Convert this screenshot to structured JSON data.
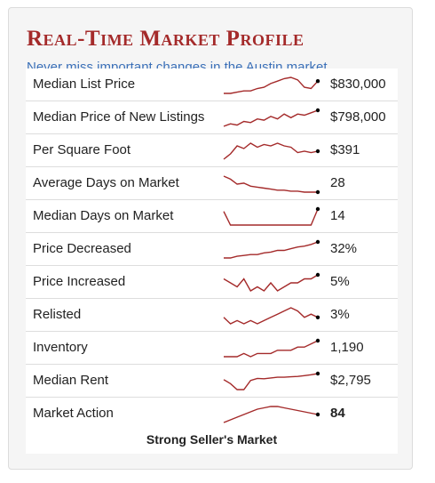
{
  "title": "Real-Time Market Profile",
  "subtitle": "Never miss important changes in the Austin market.",
  "line_color": "#a42a2a",
  "dot_color": "#000000",
  "rows": [
    {
      "label": "Median List Price",
      "value": "$830,000",
      "trend": [
        20,
        20,
        21,
        22,
        22,
        24,
        25,
        28,
        30,
        32,
        33,
        31,
        25,
        24,
        30
      ]
    },
    {
      "label": "Median Price of New Listings",
      "value": "$798,000",
      "trend": [
        20,
        22,
        21,
        24,
        23,
        26,
        25,
        28,
        26,
        30,
        27,
        30,
        29,
        31,
        33
      ]
    },
    {
      "label": "Per Square Foot",
      "value": "$391",
      "trend": [
        10,
        14,
        20,
        18,
        22,
        19,
        21,
        20,
        22,
        20,
        19,
        15,
        16,
        15,
        16
      ]
    },
    {
      "label": "Average Days on Market",
      "value": "28",
      "trend": [
        34,
        31,
        26,
        27,
        24,
        23,
        22,
        21,
        20,
        20,
        19,
        19,
        18,
        18,
        18
      ]
    },
    {
      "label": "Median Days on Market",
      "value": "14",
      "trend": [
        25,
        8,
        8,
        8,
        8,
        8,
        8,
        8,
        8,
        8,
        8,
        8,
        8,
        8,
        28
      ]
    },
    {
      "label": "Price Decreased",
      "value": "32%",
      "trend": [
        15,
        15,
        17,
        18,
        19,
        19,
        21,
        22,
        24,
        24,
        26,
        28,
        29,
        31,
        34
      ]
    },
    {
      "label": "Price Increased",
      "value": "5%",
      "trend": [
        9,
        8,
        7,
        9,
        6,
        7,
        6,
        8,
        6,
        7,
        8,
        8,
        9,
        9,
        10
      ]
    },
    {
      "label": "Relisted",
      "value": "3%",
      "trend": [
        4,
        2,
        3,
        2,
        3,
        2,
        3,
        4,
        5,
        6,
        7,
        6,
        4,
        5,
        4
      ]
    },
    {
      "label": "Inventory",
      "value": "1,190",
      "trend": [
        5,
        5,
        5,
        6,
        5,
        6,
        6,
        6,
        7,
        7,
        7,
        8,
        8,
        9,
        10
      ]
    },
    {
      "label": "Median Rent",
      "value": "$2,795",
      "trend": [
        2780,
        2770,
        2755,
        2755,
        2778,
        2783,
        2782,
        2784,
        2786,
        2786,
        2787,
        2788,
        2790,
        2792,
        2795
      ]
    },
    {
      "label": "Market Action",
      "value": "84",
      "trend": [
        78,
        80,
        82,
        84,
        86,
        88,
        89,
        90,
        90,
        89,
        88,
        87,
        86,
        85,
        84
      ]
    }
  ],
  "footer": "Strong Seller's Market"
}
